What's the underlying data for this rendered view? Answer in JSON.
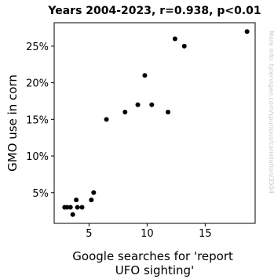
{
  "chart_data": {
    "type": "scatter",
    "title": "Years 2004-2023, r=0.938, p<0.01",
    "xlabel": "Google searches for 'report UFO sighting'",
    "xlabel_lines": [
      "Google searches for 'report",
      "UFO sighting'"
    ],
    "ylabel": "GMO use in corn",
    "watermark": "More info: tylervigen.com/spurious/correlation/3504",
    "xlim": [
      2.0,
      19.3
    ],
    "ylim": [
      0.8,
      28.2
    ],
    "xticks": [
      5,
      10,
      15
    ],
    "xtick_labels": [
      "5",
      "10",
      "15"
    ],
    "yticks": [
      5,
      10,
      15,
      20,
      25
    ],
    "ytick_labels": [
      "5%",
      "10%",
      "15%",
      "20%",
      "25%"
    ],
    "grid": false,
    "legend": "none",
    "marker_color": "#000000",
    "points": [
      {
        "x": 2.9,
        "y": 3
      },
      {
        "x": 3.1,
        "y": 3
      },
      {
        "x": 3.4,
        "y": 3
      },
      {
        "x": 3.6,
        "y": 2
      },
      {
        "x": 3.9,
        "y": 4
      },
      {
        "x": 4.0,
        "y": 3
      },
      {
        "x": 4.4,
        "y": 3
      },
      {
        "x": 5.2,
        "y": 4
      },
      {
        "x": 5.4,
        "y": 5
      },
      {
        "x": 6.5,
        "y": 15
      },
      {
        "x": 8.1,
        "y": 16
      },
      {
        "x": 9.2,
        "y": 17
      },
      {
        "x": 9.8,
        "y": 21
      },
      {
        "x": 10.4,
        "y": 17
      },
      {
        "x": 11.8,
        "y": 16
      },
      {
        "x": 12.4,
        "y": 26
      },
      {
        "x": 13.2,
        "y": 25
      },
      {
        "x": 18.6,
        "y": 27
      }
    ]
  }
}
